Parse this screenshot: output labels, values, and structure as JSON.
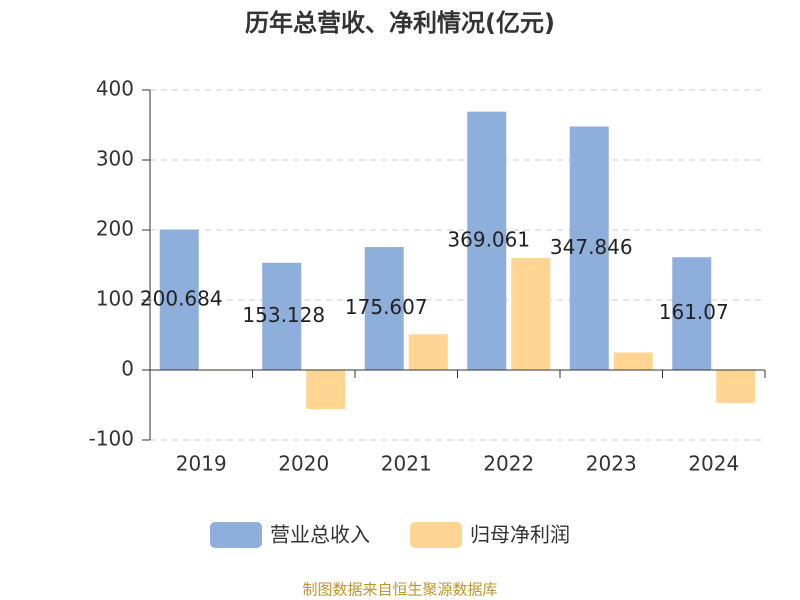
{
  "chart_data": {
    "type": "bar",
    "title": "历年总营收、净利情况(亿元)",
    "categories": [
      "2019",
      "2020",
      "2021",
      "2022",
      "2023",
      "2024"
    ],
    "series": [
      {
        "name": "营业总收入",
        "color": "#8eaedb",
        "values": [
          200.684,
          153.128,
          175.607,
          369.061,
          347.846,
          161.07
        ]
      },
      {
        "name": "归母净利润",
        "color": "#ffd591",
        "values": [
          -1,
          -56,
          51,
          160,
          25,
          -47
        ]
      }
    ],
    "ylim": [
      -100,
      400
    ],
    "yticks": [
      -100,
      0,
      100,
      200,
      300,
      400
    ],
    "grid": true,
    "source": "制图数据来自恒生聚源数据库"
  }
}
